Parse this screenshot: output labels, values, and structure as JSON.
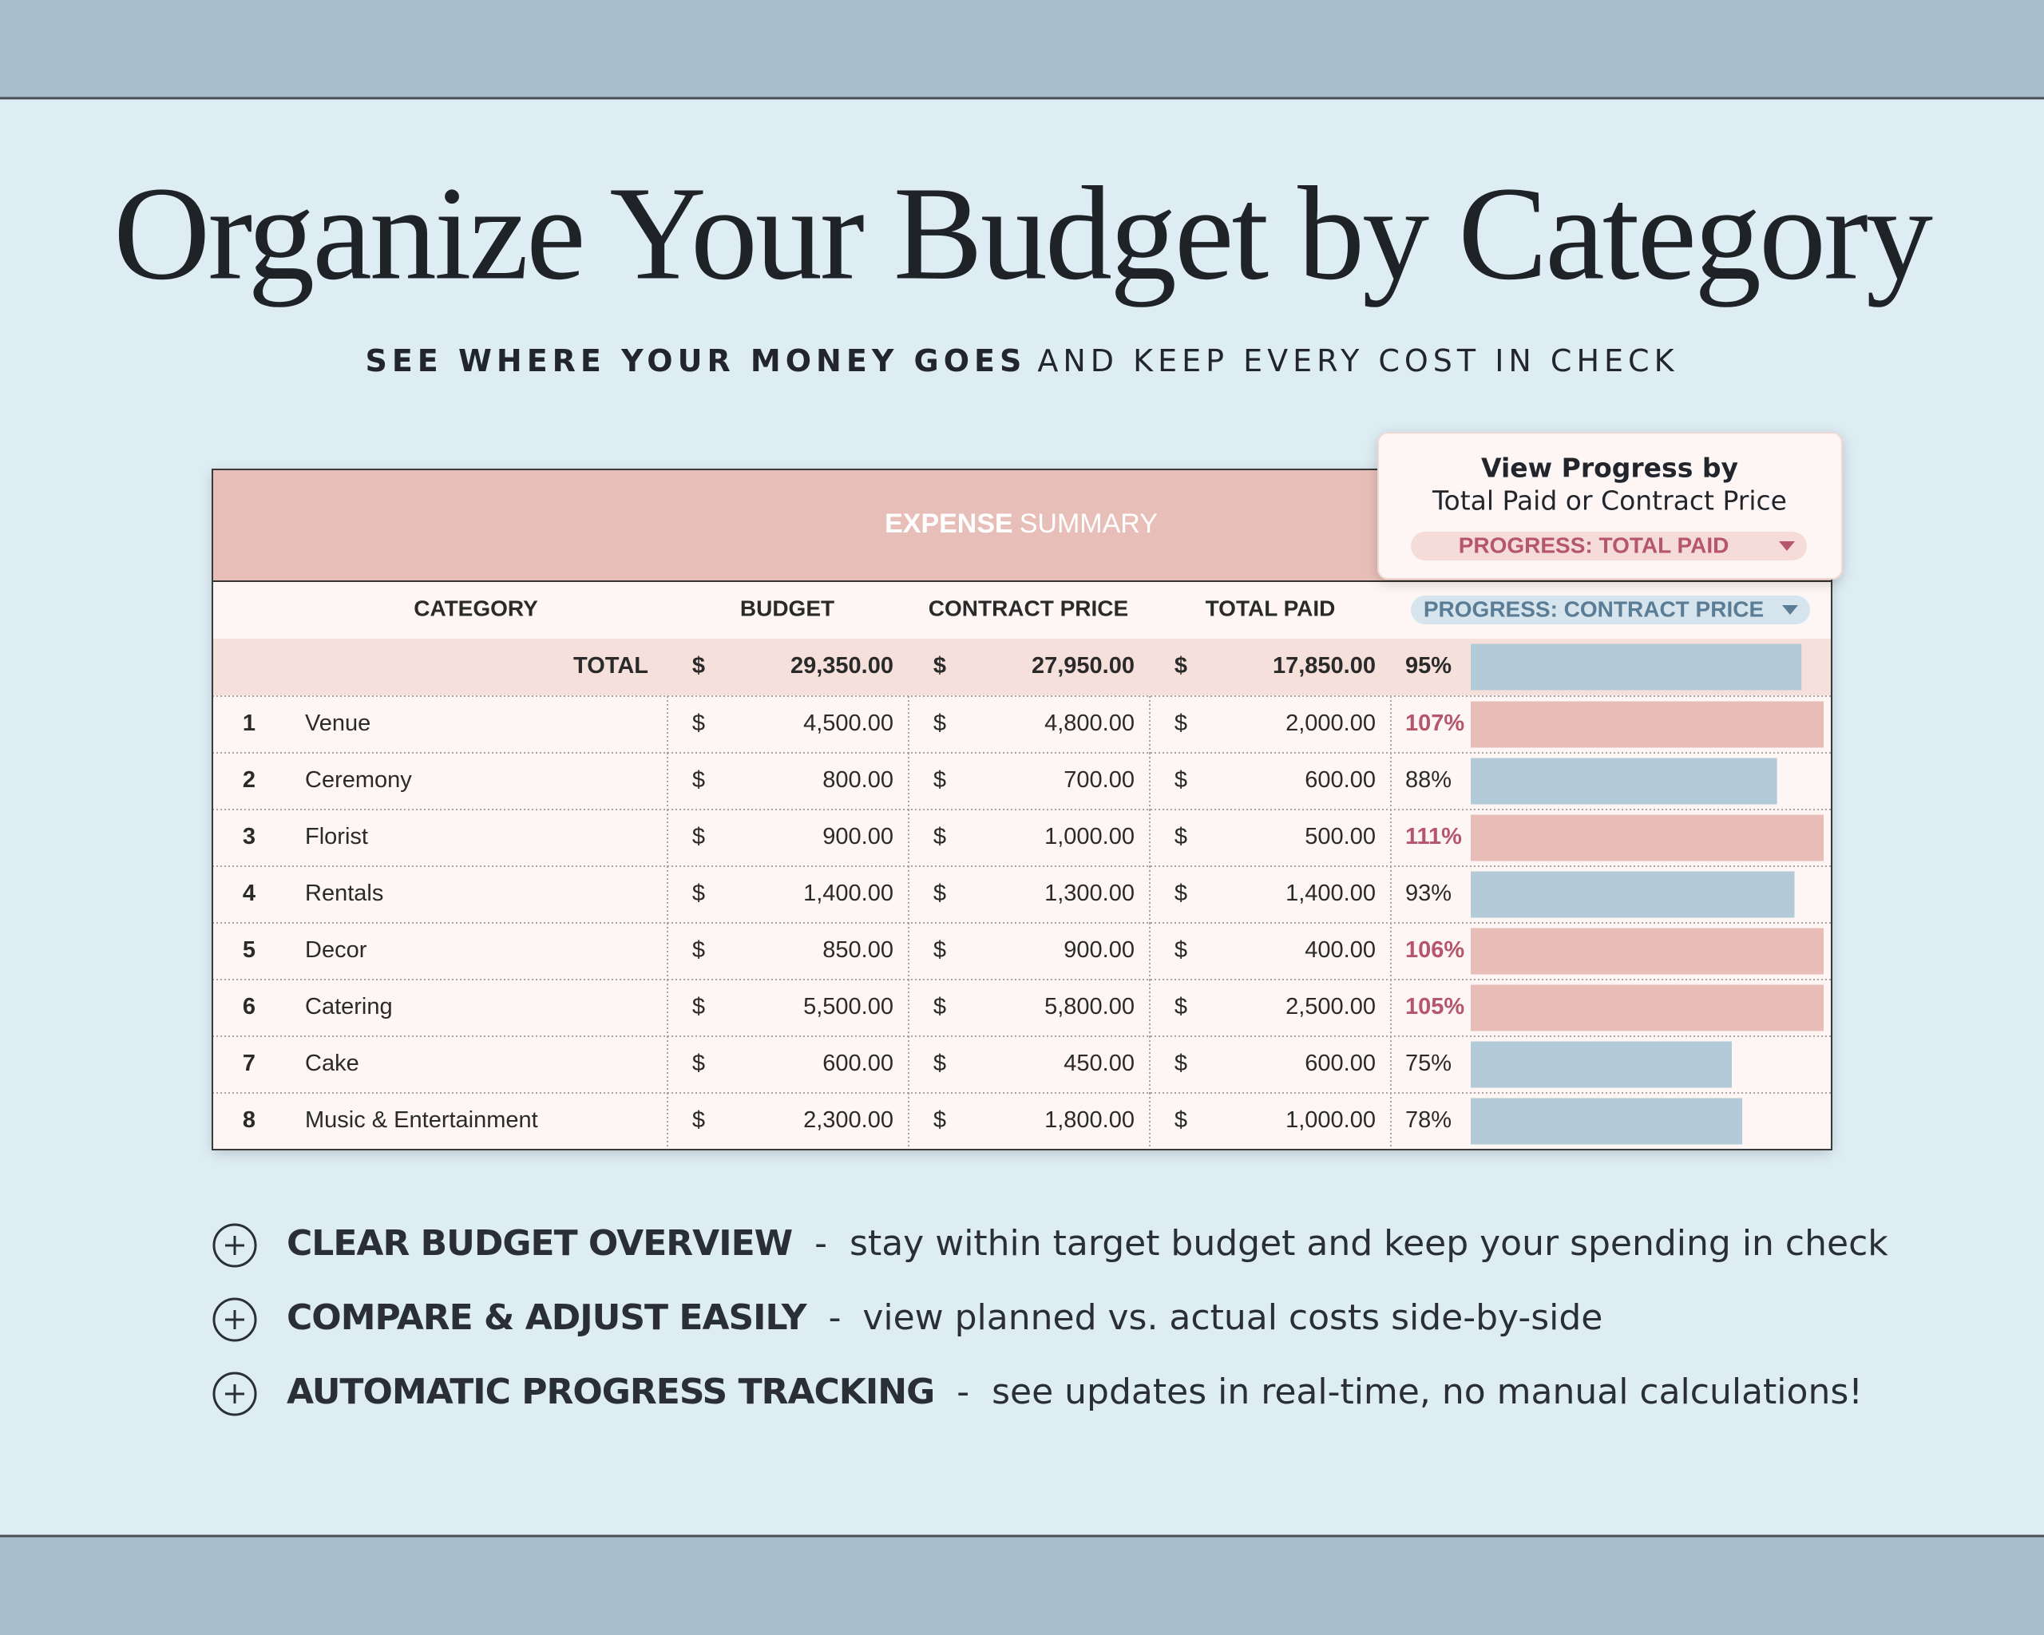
{
  "header": {
    "title": "Organize Your Budget by Category",
    "subtitle_bold": "SEE WHERE YOUR MONEY GOES",
    "subtitle_rest": "AND KEEP EVERY COST IN CHECK"
  },
  "table": {
    "title_bold": "EXPENSE",
    "title_rest": "SUMMARY",
    "columns": [
      "CATEGORY",
      "BUDGET",
      "CONTRACT PRICE",
      "TOTAL PAID"
    ],
    "progress_selector": "PROGRESS: CONTRACT PRICE",
    "currency": "$",
    "bar_colors": {
      "within": "#b3cad9",
      "over": "#e8bdb7"
    },
    "total": {
      "label": "TOTAL",
      "budget": "29,350.00",
      "contract": "27,950.00",
      "paid": "17,850.00",
      "progress": {
        "value": 95,
        "label": "95%"
      }
    },
    "rows": [
      {
        "index": 1,
        "category": "Venue",
        "budget": "4,500.00",
        "contract": "4,800.00",
        "paid": "2,000.00",
        "progress": {
          "value": 107,
          "label": "107%"
        }
      },
      {
        "index": 2,
        "category": "Ceremony",
        "budget": "800.00",
        "contract": "700.00",
        "paid": "600.00",
        "progress": {
          "value": 88,
          "label": "88%"
        }
      },
      {
        "index": 3,
        "category": "Florist",
        "budget": "900.00",
        "contract": "1,000.00",
        "paid": "500.00",
        "progress": {
          "value": 111,
          "label": "111%"
        }
      },
      {
        "index": 4,
        "category": "Rentals",
        "budget": "1,400.00",
        "contract": "1,300.00",
        "paid": "1,400.00",
        "progress": {
          "value": 93,
          "label": "93%"
        }
      },
      {
        "index": 5,
        "category": "Decor",
        "budget": "850.00",
        "contract": "900.00",
        "paid": "400.00",
        "progress": {
          "value": 106,
          "label": "106%"
        }
      },
      {
        "index": 6,
        "category": "Catering",
        "budget": "5,500.00",
        "contract": "5,800.00",
        "paid": "2,500.00",
        "progress": {
          "value": 105,
          "label": "105%"
        }
      },
      {
        "index": 7,
        "category": "Cake",
        "budget": "600.00",
        "contract": "450.00",
        "paid": "600.00",
        "progress": {
          "value": 75,
          "label": "75%"
        }
      },
      {
        "index": 8,
        "category": "Music & Entertainment",
        "budget": "2,300.00",
        "contract": "1,800.00",
        "paid": "1,000.00",
        "progress": {
          "value": 78,
          "label": "78%"
        }
      }
    ]
  },
  "popup": {
    "title": "View Progress by",
    "text": "Total Paid or Contract Price",
    "selector": "PROGRESS: TOTAL PAID"
  },
  "features": [
    {
      "title": "CLEAR BUDGET OVERVIEW",
      "separator": "-",
      "text": "stay within target budget and keep your spending in check"
    },
    {
      "title": "COMPARE & ADJUST EASILY",
      "separator": "-",
      "text": "view planned vs. actual costs side-by-side"
    },
    {
      "title": "AUTOMATIC PROGRESS TRACKING",
      "separator": "-",
      "text": "see updates in real-time, no manual calculations!"
    }
  ]
}
